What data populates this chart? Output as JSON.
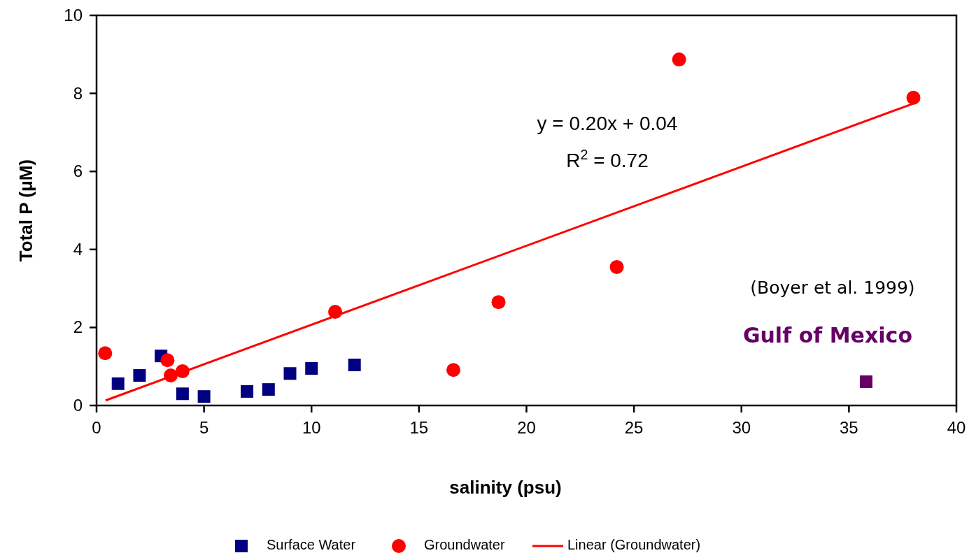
{
  "chart_data": {
    "type": "scatter",
    "xlabel": "salinity (psu)",
    "ylabel": "Total P (μM)",
    "xlim": [
      0,
      40
    ],
    "xticks": [
      0,
      5,
      10,
      15,
      20,
      25,
      30,
      35,
      40
    ],
    "ylim": [
      0,
      10
    ],
    "yticks": [
      0,
      2,
      4,
      6,
      8,
      10
    ],
    "grid": false,
    "legend": "bottom",
    "series": [
      {
        "name": "Surface Water",
        "color": "#000080",
        "marker": "square",
        "x": [
          1,
          2,
          3,
          4,
          5,
          7,
          8,
          9,
          10,
          12
        ],
        "values": [
          0.56,
          0.77,
          1.27,
          0.3,
          0.23,
          0.36,
          0.41,
          0.82,
          0.95,
          1.04
        ]
      },
      {
        "name": "Groundwater",
        "color": "#ff0000",
        "marker": "circle",
        "x": [
          0.4,
          3.3,
          3.45,
          4,
          11.1,
          16.6,
          18.7,
          24.2,
          27.1,
          38
        ],
        "values": [
          1.34,
          1.16,
          0.77,
          0.88,
          2.4,
          0.91,
          2.65,
          3.55,
          8.87,
          7.89
        ]
      },
      {
        "name": "Linear (Groundwater)",
        "type": "line",
        "color": "#ff0000",
        "marker": "none",
        "x": [
          0.42,
          38
        ],
        "values": [
          0.13,
          7.74
        ]
      },
      {
        "name": "Gulf of Mexico",
        "color": "#660066",
        "marker": "square",
        "x": [
          35.8
        ],
        "values": [
          0.61
        ]
      }
    ],
    "annotations": [
      "y = 0.20x + 0.04",
      "R$^{2}$ = 0.72",
      "(Boyer et al. 1999)"
    ]
  }
}
